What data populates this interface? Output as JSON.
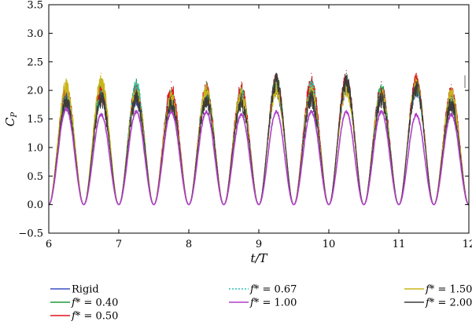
{
  "chart_data": {
    "type": "line",
    "xlabel": "t/T",
    "ylabel": "C_P",
    "ylabel_main": "C",
    "ylabel_sub": "P",
    "xlim": [
      6,
      12
    ],
    "ylim": [
      -0.5,
      3.5
    ],
    "x_ticks": [
      6,
      7,
      8,
      9,
      10,
      11,
      12
    ],
    "y_ticks": [
      -0.5,
      0.0,
      0.5,
      1.0,
      1.5,
      2.0,
      2.5,
      3.0,
      3.5
    ],
    "x_tick_labels": [
      "6",
      "7",
      "8",
      "9",
      "10",
      "11",
      "12"
    ],
    "y_tick_labels": [
      "−0.5",
      "0.0",
      "0.5",
      "1.0",
      "1.5",
      "2.0",
      "2.5",
      "3.0",
      "3.5"
    ],
    "grid": false,
    "legend_position": "bottom",
    "period_t_over_T": 0.5,
    "peak_times": [
      6.25,
      6.75,
      7.25,
      7.75,
      8.25,
      8.75,
      9.25,
      9.75,
      10.25,
      10.75,
      11.25,
      11.75
    ],
    "series": [
      {
        "name": "Rigid",
        "label_prefix": "",
        "label_value": "Rigid",
        "color": "#3a4fc0",
        "dash": "solid",
        "peak_values": [
          2.0,
          2.1,
          2.05,
          2.0,
          2.1,
          2.05,
          2.2,
          2.15,
          2.2,
          2.1,
          2.2,
          2.0
        ],
        "min_value": 0.0
      },
      {
        "name": "f* = 0.40",
        "label_prefix": "f*",
        "label_value": " = 0.40",
        "color": "#1f9a3a",
        "dash": "solid",
        "peak_values": [
          2.1,
          2.2,
          2.2,
          2.05,
          2.15,
          2.1,
          2.3,
          2.2,
          2.3,
          2.15,
          2.25,
          2.05
        ],
        "min_value": 0.0
      },
      {
        "name": "f* = 0.50",
        "label_prefix": "f*",
        "label_value": " = 0.50",
        "color": "#e0141e",
        "dash": "solid",
        "peak_values": [
          2.15,
          2.1,
          2.15,
          2.15,
          2.15,
          2.15,
          2.3,
          2.3,
          2.35,
          2.15,
          2.3,
          2.1
        ],
        "min_value": 0.0
      },
      {
        "name": "f* = 0.67",
        "label_prefix": "f*",
        "label_value": " = 0.67",
        "color": "#2ec4b0",
        "dash": "dotted",
        "peak_values": [
          2.05,
          2.05,
          2.2,
          2.0,
          2.1,
          2.05,
          2.25,
          2.2,
          2.25,
          2.1,
          2.2,
          2.0
        ],
        "min_value": 0.0
      },
      {
        "name": "f* = 1.00",
        "label_prefix": "f*",
        "label_value": " = 1.00",
        "color": "#b040c8",
        "dash": "solid",
        "peak_values": [
          1.7,
          1.6,
          1.65,
          1.65,
          1.65,
          1.6,
          1.65,
          1.65,
          1.65,
          1.65,
          1.6,
          1.6
        ],
        "min_value": 0.0
      },
      {
        "name": "f* = 1.50",
        "label_prefix": "f*",
        "label_value": " = 1.50",
        "color": "#c9b518",
        "dash": "solid",
        "peak_values": [
          2.2,
          2.3,
          2.1,
          2.0,
          2.1,
          2.05,
          2.2,
          2.1,
          2.2,
          2.05,
          2.25,
          2.05
        ],
        "min_value": 0.0
      },
      {
        "name": "f* = 2.00",
        "label_prefix": "f*",
        "label_value": " = 2.00",
        "color": "#3c3c3c",
        "dash": "solid",
        "peak_values": [
          1.95,
          2.0,
          2.0,
          1.9,
          2.0,
          1.95,
          2.3,
          2.0,
          2.3,
          2.0,
          2.2,
          1.9
        ],
        "min_value": 0.0
      }
    ]
  }
}
